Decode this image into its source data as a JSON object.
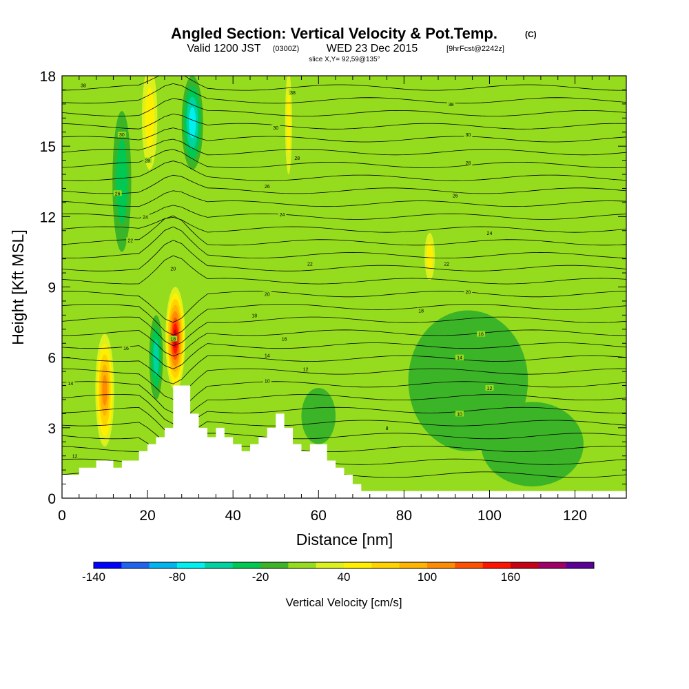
{
  "title": {
    "main": "Angled Section: Vertical Velocity & Pot.Temp.",
    "main_unit": "(C)",
    "valid_prefix": "Valid 1200 JST",
    "valid_z": "(0300Z)",
    "valid_date": "WED 23 Dec 2015",
    "forecast": "[9hrFcst@2242z]",
    "slice": "slice X,Y= 92,59@135°"
  },
  "chart_data": {
    "type": "heatmap",
    "xlabel": "Distance [nm]",
    "ylabel": "Height [Kft MSL]",
    "xlim": [
      0,
      132
    ],
    "ylim": [
      0,
      18
    ],
    "x_ticks": [
      0,
      20,
      40,
      60,
      80,
      100,
      120
    ],
    "x_tick_labels": [
      "0",
      "20",
      "40",
      "60",
      "80",
      "100",
      "120"
    ],
    "y_ticks": [
      0,
      3,
      6,
      9,
      12,
      15,
      18
    ],
    "y_tick_labels": [
      "0",
      "3",
      "6",
      "9",
      "12",
      "15",
      "18"
    ],
    "colorbar": {
      "label": "Vertical Velocity [cm/s]",
      "bins": [
        -140,
        -120,
        -100,
        -80,
        -60,
        -40,
        -20,
        0,
        20,
        40,
        60,
        80,
        100,
        120,
        140,
        160,
        180,
        200
      ],
      "colors": [
        "#0000ff",
        "#1e64f0",
        "#00b4f0",
        "#00f0f0",
        "#00d2a0",
        "#00c850",
        "#3cb428",
        "#96dc1e",
        "#dcf01e",
        "#fff000",
        "#ffd200",
        "#ffb400",
        "#ff8c00",
        "#ff5000",
        "#ff1400",
        "#c80014",
        "#a00064",
        "#5a0096"
      ],
      "tick_values": [
        -140,
        -80,
        -20,
        40,
        100,
        160
      ],
      "tick_labels": [
        "-140",
        "-80",
        "-20",
        "40",
        "100",
        "160"
      ]
    },
    "background_velocity_color": "#96dc1e",
    "velocity_features": [
      {
        "x": 10,
        "y": 4.6,
        "rx": 2.2,
        "ry": 2.4,
        "value": 100
      },
      {
        "x": 26.5,
        "y": 6.8,
        "rx": 2.3,
        "ry": 2.2,
        "value": 160
      },
      {
        "x": 20.5,
        "y": 16.2,
        "rx": 1.8,
        "ry": 2.2,
        "value": 40
      },
      {
        "x": 14,
        "y": 13.5,
        "rx": 2.2,
        "ry": 3.0,
        "value": -40
      },
      {
        "x": 22,
        "y": 6.0,
        "rx": 1.6,
        "ry": 1.8,
        "value": -60
      },
      {
        "x": 30.5,
        "y": 16.0,
        "rx": 2.5,
        "ry": 2.0,
        "value": -80
      },
      {
        "x": 86,
        "y": 10.3,
        "rx": 1.2,
        "ry": 1.0,
        "value": 40
      },
      {
        "x": 53,
        "y": 16.0,
        "rx": 0.8,
        "ry": 2.2,
        "value": 40
      },
      {
        "x": 95,
        "y": 5.0,
        "rx": 14,
        "ry": 3.0,
        "value": -20
      },
      {
        "x": 110,
        "y": 2.3,
        "rx": 12,
        "ry": 1.8,
        "value": -20
      },
      {
        "x": 60,
        "y": 3.5,
        "rx": 4,
        "ry": 1.2,
        "value": -20
      }
    ],
    "terrain_profile": {
      "x": [
        0,
        4,
        4,
        8,
        8,
        12,
        12,
        14,
        14,
        18,
        18,
        20,
        20,
        22,
        22,
        24,
        24,
        26,
        26,
        28,
        28,
        30,
        30,
        32,
        32,
        34,
        34,
        36,
        36,
        38,
        38,
        40,
        40,
        42,
        42,
        44,
        44,
        46,
        46,
        48,
        48,
        50,
        50,
        52,
        52,
        54,
        54,
        56,
        56,
        58,
        58,
        62,
        62,
        64,
        64,
        66,
        66,
        68,
        68,
        70,
        70,
        72,
        72,
        132
      ],
      "y": [
        1.0,
        1.0,
        1.3,
        1.3,
        1.6,
        1.6,
        1.3,
        1.3,
        1.6,
        1.6,
        2.0,
        2.0,
        2.3,
        2.3,
        2.6,
        2.6,
        3.0,
        3.0,
        4.8,
        4.8,
        4.8,
        4.8,
        3.6,
        3.6,
        3.0,
        3.0,
        2.6,
        2.6,
        3.0,
        3.0,
        2.6,
        2.6,
        2.3,
        2.3,
        2.0,
        2.0,
        2.3,
        2.3,
        2.6,
        2.6,
        3.0,
        3.0,
        3.6,
        3.6,
        3.0,
        3.0,
        2.3,
        2.3,
        2.0,
        2.0,
        2.3,
        2.3,
        1.6,
        1.6,
        1.3,
        1.3,
        1.0,
        1.0,
        0.6,
        0.6,
        0.3,
        0.3,
        0.3,
        0.3
      ]
    },
    "contour_labels": [
      {
        "x": 5,
        "y": 17.6,
        "label": "38"
      },
      {
        "x": 14,
        "y": 15.5,
        "label": "30"
      },
      {
        "x": 20,
        "y": 14.4,
        "label": "28"
      },
      {
        "x": 13,
        "y": 13.0,
        "label": "26"
      },
      {
        "x": 19.5,
        "y": 12.0,
        "label": "24"
      },
      {
        "x": 16,
        "y": 11.0,
        "label": "22"
      },
      {
        "x": 26,
        "y": 9.8,
        "label": "20"
      },
      {
        "x": 26,
        "y": 6.8,
        "label": "18"
      },
      {
        "x": 15,
        "y": 6.4,
        "label": "16"
      },
      {
        "x": 2,
        "y": 4.9,
        "label": "14"
      },
      {
        "x": 3,
        "y": 1.8,
        "label": "12"
      },
      {
        "x": 54,
        "y": 17.3,
        "label": "38"
      },
      {
        "x": 50,
        "y": 15.8,
        "label": "30"
      },
      {
        "x": 55,
        "y": 14.5,
        "label": "28"
      },
      {
        "x": 48,
        "y": 13.3,
        "label": "26"
      },
      {
        "x": 51.5,
        "y": 12.1,
        "label": "24"
      },
      {
        "x": 58,
        "y": 10.0,
        "label": "22"
      },
      {
        "x": 48,
        "y": 8.7,
        "label": "20"
      },
      {
        "x": 45,
        "y": 7.8,
        "label": "18"
      },
      {
        "x": 52,
        "y": 6.8,
        "label": "16"
      },
      {
        "x": 48,
        "y": 6.1,
        "label": "14"
      },
      {
        "x": 57,
        "y": 5.5,
        "label": "12"
      },
      {
        "x": 48,
        "y": 5.0,
        "label": "10"
      },
      {
        "x": 91,
        "y": 16.8,
        "label": "38"
      },
      {
        "x": 95,
        "y": 15.5,
        "label": "30"
      },
      {
        "x": 95,
        "y": 14.3,
        "label": "28"
      },
      {
        "x": 92,
        "y": 12.9,
        "label": "26"
      },
      {
        "x": 100,
        "y": 11.3,
        "label": "24"
      },
      {
        "x": 90,
        "y": 10.0,
        "label": "22"
      },
      {
        "x": 95,
        "y": 8.8,
        "label": "20"
      },
      {
        "x": 84,
        "y": 8.0,
        "label": "18"
      },
      {
        "x": 98,
        "y": 7.0,
        "label": "16"
      },
      {
        "x": 93,
        "y": 6.0,
        "label": "14"
      },
      {
        "x": 100,
        "y": 4.7,
        "label": "12"
      },
      {
        "x": 93,
        "y": 3.6,
        "label": "10"
      },
      {
        "x": 76,
        "y": 3.0,
        "label": "8"
      }
    ]
  }
}
